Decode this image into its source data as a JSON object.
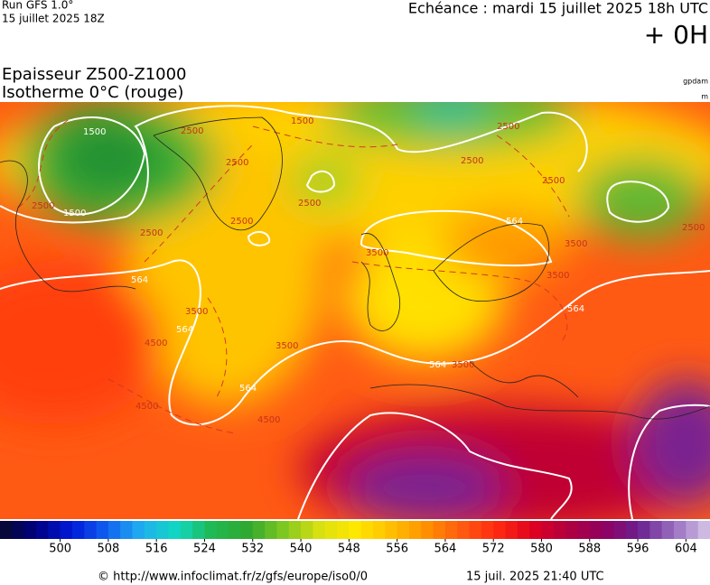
{
  "header": {
    "run": "Run GFS 1.0°",
    "run_date": "15 juillet 2025 18Z",
    "valid_time": "Echéance : mardi 15 juillet 2025 18h UTC",
    "lead": "+ 0H"
  },
  "map": {
    "title": "Epaisseur Z500-Z1000",
    "subtitle": "Isotherme 0°C (rouge)",
    "units": [
      "gpdam",
      "m"
    ],
    "contour_labels": [
      "1500",
      "1500",
      "2500",
      "2500",
      "2500",
      "1500",
      "2500",
      "2500",
      "2500",
      "2500",
      "2500",
      "2500",
      "564",
      "3500",
      "564",
      "3500",
      "4500",
      "564",
      "3500",
      "4500",
      "564",
      "4500",
      "3500",
      "564",
      "564",
      "3500",
      "3500",
      "2500"
    ]
  },
  "colorbar": {
    "ticks": [
      500,
      508,
      516,
      524,
      532,
      540,
      548,
      556,
      564,
      572,
      580,
      588,
      596,
      604
    ],
    "lim": [
      490,
      608
    ],
    "step": 2,
    "colors": [
      "#08082a",
      "#000080",
      "#0018d8",
      "#1060f0",
      "#20b0f0",
      "#10d8c0",
      "#20b850",
      "#30a830",
      "#80c820",
      "#d8e010",
      "#ffe800",
      "#ffc000",
      "#ff9000",
      "#ff5a10",
      "#ff2a10",
      "#e00020",
      "#b00040",
      "#900060",
      "#6a2090",
      "#9a70c0",
      "#d8c8e8"
    ]
  },
  "footer": {
    "source": "© http://www.infoclimat.fr/z/gfs/europe/iso0/0",
    "generated": "15 juil. 2025 21:40 UTC"
  }
}
